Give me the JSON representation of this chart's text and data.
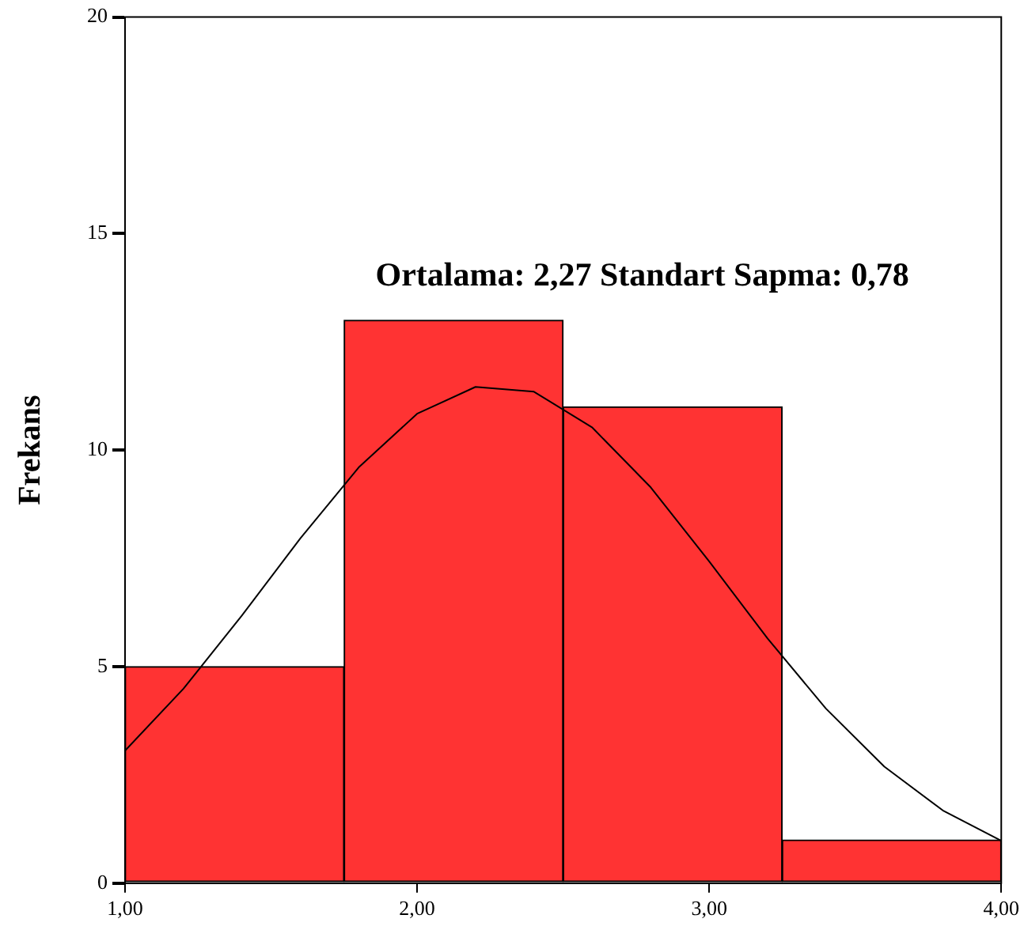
{
  "chart_data": {
    "type": "histogram",
    "ylabel": "Frekans",
    "annotations": [
      "Ortalama: 2,27 Standart Sapma: 0,78"
    ],
    "bins": [
      1,
      1.75,
      2.5,
      3.25,
      4
    ],
    "values": [
      5,
      13,
      11,
      1
    ],
    "color": "#ff3333",
    "series": [
      {
        "type": "line",
        "color": "#000000",
        "x": [
          1,
          1.2,
          1.4,
          1.6,
          1.8,
          2,
          2.2,
          2.4,
          2.6,
          2.8,
          3,
          3.2,
          3.4,
          3.6,
          3.8,
          4
        ],
        "values": [
          3.06,
          4.49,
          6.18,
          7.96,
          9.6,
          10.84,
          11.46,
          11.35,
          10.52,
          9.14,
          7.43,
          5.65,
          4.03,
          2.69,
          1.68,
          0.98
        ]
      }
    ],
    "xlim": [
      1,
      4
    ],
    "xticks": [
      {
        "value": 1,
        "label": "1,00"
      },
      {
        "value": 2,
        "label": "2,00"
      },
      {
        "value": 3,
        "label": "3,00"
      },
      {
        "value": 4,
        "label": "4,00"
      }
    ],
    "ylim": [
      0,
      20
    ],
    "yticks": [
      0,
      5,
      10,
      15,
      20
    ],
    "grid": false,
    "legend": false,
    "marker": "none",
    "line_style": "solid"
  }
}
